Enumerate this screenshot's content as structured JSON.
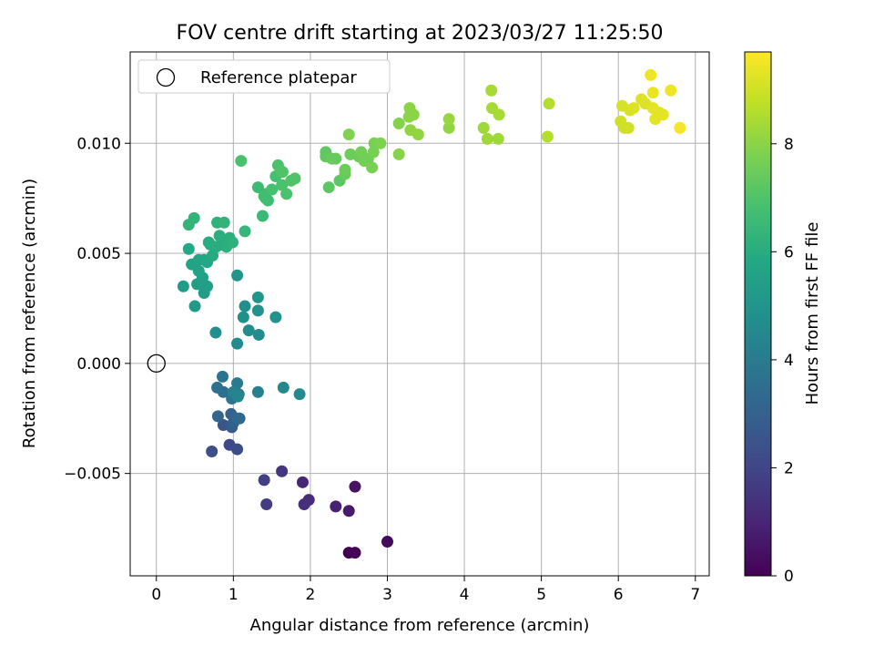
{
  "chart_data": {
    "type": "scatter",
    "title": "FOV centre drift starting at 2023/03/27 11:25:50",
    "xlabel": "Angular distance from reference (arcmin)",
    "ylabel": "Rotation from reference (arcmin)",
    "xlim": [
      -0.34,
      7.18
    ],
    "ylim": [
      -0.00965,
      0.01415
    ],
    "x_ticks": [
      0,
      1,
      2,
      3,
      4,
      5,
      6,
      7
    ],
    "x_tick_labels": [
      "0",
      "1",
      "2",
      "3",
      "4",
      "5",
      "6",
      "7"
    ],
    "y_ticks": [
      -0.005,
      0.0,
      0.005,
      0.01
    ],
    "y_tick_labels": [
      "−0.005",
      "0.000",
      "0.005",
      "0.010"
    ],
    "grid": true,
    "legend": {
      "position": "top-left",
      "entries": [
        "Reference platepar"
      ]
    },
    "reference_point": {
      "x": 0.0,
      "y": 0.0,
      "marker": "open-circle"
    },
    "colorbar": {
      "label": "Hours from first FF file",
      "colormap": "viridis",
      "range": [
        0,
        9.7
      ],
      "ticks": [
        0,
        2,
        4,
        6,
        8
      ],
      "tick_labels": [
        "0",
        "2",
        "4",
        "6",
        "8"
      ]
    },
    "series": [
      {
        "points": [
          [
            2.5,
            -0.0086,
            0.0
          ],
          [
            2.58,
            -0.0086,
            0.05
          ],
          [
            3.0,
            -0.0081,
            0.2
          ],
          [
            2.58,
            -0.0056,
            0.5
          ],
          [
            2.5,
            -0.0067,
            0.7
          ],
          [
            2.33,
            -0.0065,
            0.9
          ],
          [
            1.9,
            -0.0054,
            1.1
          ],
          [
            1.98,
            -0.0062,
            1.2
          ],
          [
            1.92,
            -0.0064,
            1.3
          ],
          [
            1.63,
            -0.0049,
            1.5
          ],
          [
            1.43,
            -0.0064,
            1.7
          ],
          [
            1.4,
            -0.0053,
            1.8
          ],
          [
            0.95,
            -0.0037,
            2.1
          ],
          [
            1.05,
            -0.0039,
            2.2
          ],
          [
            0.72,
            -0.004,
            2.3
          ],
          [
            0.87,
            -0.0028,
            2.6
          ],
          [
            0.98,
            -0.0029,
            2.8
          ],
          [
            1.0,
            -0.0027,
            2.9
          ],
          [
            0.97,
            -0.0023,
            3.0
          ],
          [
            1.08,
            -0.0025,
            3.1
          ],
          [
            0.8,
            -0.0024,
            3.2
          ],
          [
            1.05,
            -0.0025,
            3.3
          ],
          [
            0.87,
            -0.0013,
            3.5
          ],
          [
            0.79,
            -0.0011,
            3.6
          ],
          [
            0.86,
            -0.0006,
            3.7
          ],
          [
            0.98,
            -0.0016,
            3.8
          ],
          [
            1.05,
            -0.0009,
            3.9
          ],
          [
            1.07,
            -0.0014,
            4.0
          ],
          [
            1.32,
            -0.0013,
            4.2
          ],
          [
            1.0,
            -0.0013,
            4.3
          ],
          [
            1.06,
            -0.0015,
            4.4
          ],
          [
            1.65,
            -0.0011,
            4.5
          ],
          [
            1.86,
            -0.0014,
            4.6
          ],
          [
            1.05,
            0.0009,
            4.6
          ],
          [
            1.2,
            0.0015,
            4.7
          ],
          [
            1.33,
            0.0013,
            4.7
          ],
          [
            0.77,
            0.0014,
            4.8
          ],
          [
            1.13,
            0.0021,
            4.8
          ],
          [
            1.15,
            0.0026,
            4.8
          ],
          [
            1.32,
            0.0024,
            4.9
          ],
          [
            1.55,
            0.0021,
            4.9
          ],
          [
            1.05,
            0.004,
            5.0
          ],
          [
            1.32,
            0.003,
            5.1
          ],
          [
            0.5,
            0.0026,
            5.2
          ],
          [
            0.35,
            0.0035,
            5.3
          ],
          [
            0.62,
            0.0032,
            5.3
          ],
          [
            0.53,
            0.0036,
            5.4
          ],
          [
            0.6,
            0.0036,
            5.4
          ],
          [
            0.66,
            0.0035,
            5.5
          ],
          [
            0.6,
            0.0039,
            5.5
          ],
          [
            0.55,
            0.0042,
            5.6
          ],
          [
            0.46,
            0.0045,
            5.6
          ],
          [
            0.62,
            0.0047,
            5.7
          ],
          [
            0.55,
            0.0047,
            5.7
          ],
          [
            0.42,
            0.0052,
            5.8
          ],
          [
            0.66,
            0.0046,
            5.8
          ],
          [
            0.73,
            0.0049,
            5.9
          ],
          [
            0.68,
            0.0055,
            5.9
          ],
          [
            0.7,
            0.0054,
            6.0
          ],
          [
            0.78,
            0.0053,
            6.0
          ],
          [
            0.85,
            0.0054,
            6.0
          ],
          [
            0.91,
            0.0053,
            6.1
          ],
          [
            0.82,
            0.0058,
            6.1
          ],
          [
            0.95,
            0.0057,
            6.1
          ],
          [
            0.99,
            0.0055,
            6.2
          ],
          [
            0.79,
            0.0064,
            6.2
          ],
          [
            0.88,
            0.0064,
            6.3
          ],
          [
            0.42,
            0.0063,
            6.3
          ],
          [
            0.49,
            0.0066,
            6.3
          ],
          [
            1.15,
            0.006,
            6.4
          ],
          [
            1.38,
            0.0067,
            6.5
          ],
          [
            1.32,
            0.008,
            6.6
          ],
          [
            1.42,
            0.0077,
            6.6
          ],
          [
            1.4,
            0.0076,
            6.7
          ],
          [
            1.45,
            0.0074,
            6.7
          ],
          [
            1.42,
            0.0075,
            6.7
          ],
          [
            1.5,
            0.0079,
            6.8
          ],
          [
            1.55,
            0.0085,
            6.8
          ],
          [
            1.63,
            0.0081,
            6.9
          ],
          [
            1.69,
            0.0077,
            6.9
          ],
          [
            1.58,
            0.009,
            6.9
          ],
          [
            1.64,
            0.0087,
            7.0
          ],
          [
            1.75,
            0.0083,
            7.0
          ],
          [
            1.8,
            0.0084,
            7.0
          ],
          [
            1.1,
            0.0092,
            6.9
          ],
          [
            2.24,
            0.008,
            7.2
          ],
          [
            2.38,
            0.0083,
            7.2
          ],
          [
            2.2,
            0.0094,
            7.3
          ],
          [
            2.2,
            0.0096,
            7.3
          ],
          [
            2.28,
            0.0093,
            7.4
          ],
          [
            2.33,
            0.0093,
            7.4
          ],
          [
            2.45,
            0.0086,
            7.4
          ],
          [
            2.45,
            0.0088,
            7.5
          ],
          [
            2.52,
            0.0095,
            7.5
          ],
          [
            2.63,
            0.0094,
            7.5
          ],
          [
            2.66,
            0.0096,
            7.6
          ],
          [
            2.7,
            0.0092,
            7.6
          ],
          [
            2.75,
            0.0093,
            7.6
          ],
          [
            2.82,
            0.0096,
            7.7
          ],
          [
            2.8,
            0.0089,
            7.7
          ],
          [
            2.83,
            0.01,
            7.7
          ],
          [
            2.91,
            0.01,
            7.8
          ],
          [
            2.5,
            0.0104,
            7.8
          ],
          [
            3.15,
            0.0095,
            7.9
          ],
          [
            3.15,
            0.0109,
            7.9
          ],
          [
            3.28,
            0.0112,
            8.0
          ],
          [
            3.34,
            0.0113,
            8.0
          ],
          [
            3.29,
            0.0116,
            8.0
          ],
          [
            3.3,
            0.0106,
            8.1
          ],
          [
            3.4,
            0.0104,
            8.1
          ],
          [
            3.8,
            0.0107,
            8.1
          ],
          [
            3.8,
            0.0111,
            8.2
          ],
          [
            4.25,
            0.0107,
            8.3
          ],
          [
            4.3,
            0.0102,
            8.3
          ],
          [
            4.44,
            0.0102,
            8.3
          ],
          [
            4.36,
            0.0116,
            8.4
          ],
          [
            4.45,
            0.0113,
            8.4
          ],
          [
            4.35,
            0.0124,
            8.4
          ],
          [
            5.08,
            0.0103,
            8.6
          ],
          [
            5.1,
            0.0118,
            8.6
          ],
          [
            6.03,
            0.011,
            9.0
          ],
          [
            6.08,
            0.0107,
            9.0
          ],
          [
            6.13,
            0.0107,
            9.0
          ],
          [
            6.05,
            0.0117,
            9.1
          ],
          [
            6.15,
            0.0115,
            9.1
          ],
          [
            6.2,
            0.0116,
            9.2
          ],
          [
            6.3,
            0.012,
            9.2
          ],
          [
            6.35,
            0.0118,
            9.2
          ],
          [
            6.45,
            0.0116,
            9.3
          ],
          [
            6.48,
            0.0111,
            9.3
          ],
          [
            6.53,
            0.0114,
            9.3
          ],
          [
            6.58,
            0.0113,
            9.3
          ],
          [
            6.45,
            0.0123,
            9.4
          ],
          [
            6.42,
            0.0131,
            9.5
          ],
          [
            6.68,
            0.0124,
            9.5
          ],
          [
            6.8,
            0.0107,
            9.6
          ]
        ]
      }
    ]
  }
}
